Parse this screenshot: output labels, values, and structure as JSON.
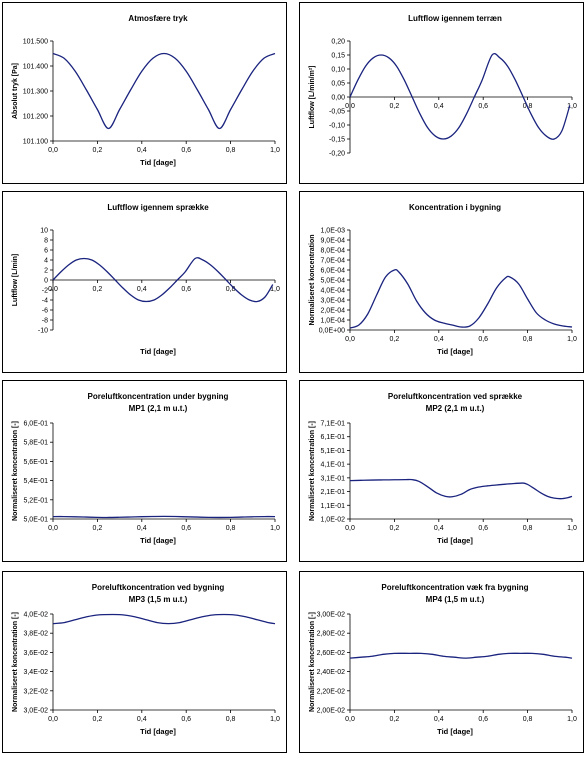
{
  "chart_data": [
    {
      "type": "line",
      "title": "Atmosfære tryk",
      "xlabel": "Tid [dage]",
      "ylabel": "Absolut tryk [Pa]",
      "xlim": [
        0,
        1
      ],
      "ylim": [
        101100,
        101500
      ],
      "x_ticks": [
        "0,0",
        "0,2",
        "0,4",
        "0,6",
        "0,8",
        "1,0"
      ],
      "y_ticks": [
        "101.100",
        "101.200",
        "101.300",
        "101.400",
        "101.500"
      ],
      "series": [
        {
          "color": "#1a237e",
          "x": [
            0,
            0.05,
            0.1,
            0.15,
            0.2,
            0.25,
            0.3,
            0.35,
            0.4,
            0.45,
            0.5,
            0.55,
            0.6,
            0.65,
            0.7,
            0.75,
            0.8,
            0.85,
            0.9,
            0.95,
            1.0
          ],
          "y": [
            101450,
            101431,
            101379,
            101305,
            101226,
            101150,
            101226,
            101305,
            101379,
            101431,
            101450,
            101431,
            101379,
            101305,
            101226,
            101150,
            101226,
            101305,
            101379,
            101431,
            101450
          ]
        }
      ]
    },
    {
      "type": "line",
      "title": "Luftflow igennem terræn",
      "xlabel": "",
      "ylabel": "Luftflow [L/min/m²]",
      "xlim": [
        0,
        1
      ],
      "ylim": [
        -0.2,
        0.2
      ],
      "x_axis_at_zero": true,
      "x_ticks": [
        "0,0",
        "0,2",
        "0,4",
        "0,6",
        "0,8",
        "1,0"
      ],
      "y_ticks": [
        "-0,20",
        "-0,15",
        "-0,10",
        "-0,05",
        "0,00",
        "0,05",
        "0,10",
        "0,15",
        "0,20"
      ],
      "series": [
        {
          "color": "#1a237e",
          "x": [
            0,
            0.035,
            0.07,
            0.105,
            0.14,
            0.175,
            0.21,
            0.245,
            0.28,
            0.315,
            0.35,
            0.385,
            0.42,
            0.455,
            0.49,
            0.525,
            0.56,
            0.595,
            0.64,
            0.675,
            0.71,
            0.745,
            0.78,
            0.815,
            0.85,
            0.885,
            0.92,
            0.955,
            0.99
          ],
          "y": [
            0.0,
            0.06,
            0.11,
            0.14,
            0.15,
            0.14,
            0.11,
            0.06,
            0.0,
            -0.06,
            -0.11,
            -0.14,
            -0.15,
            -0.14,
            -0.11,
            -0.06,
            0.0,
            0.06,
            0.15,
            0.14,
            0.11,
            0.06,
            0.0,
            -0.06,
            -0.11,
            -0.14,
            -0.15,
            -0.12,
            -0.03
          ]
        }
      ]
    },
    {
      "type": "line",
      "title": "Luftflow igennem sprække",
      "xlabel": "Tid [dage]",
      "ylabel": "Luftflow [L/min]",
      "xlim": [
        0,
        1
      ],
      "ylim": [
        -10,
        10
      ],
      "x_axis_at_zero": true,
      "x_ticks": [
        "0,0",
        "0,2",
        "0,4",
        "0,6",
        "0,8",
        "1,0"
      ],
      "y_ticks": [
        "-10",
        "-8",
        "-6",
        "-4",
        "-2",
        "0",
        "2",
        "4",
        "6",
        "8",
        "10"
      ],
      "series": [
        {
          "color": "#1a237e",
          "x": [
            0,
            0.035,
            0.07,
            0.105,
            0.14,
            0.175,
            0.21,
            0.245,
            0.28,
            0.315,
            0.35,
            0.385,
            0.42,
            0.455,
            0.49,
            0.525,
            0.56,
            0.595,
            0.64,
            0.675,
            0.71,
            0.745,
            0.78,
            0.815,
            0.85,
            0.885,
            0.92,
            0.955,
            0.99
          ],
          "y": [
            0.0,
            1.6,
            3.0,
            4.0,
            4.3,
            4.0,
            3.0,
            1.6,
            0.0,
            -1.6,
            -3.0,
            -4.0,
            -4.3,
            -4.0,
            -3.0,
            -1.6,
            0.0,
            1.6,
            4.3,
            4.0,
            3.0,
            1.6,
            0.0,
            -1.6,
            -3.0,
            -4.0,
            -4.3,
            -3.4,
            -0.9
          ]
        }
      ]
    },
    {
      "type": "line",
      "title": "Koncentration i bygning",
      "xlabel": "Tid [dage]",
      "ylabel": "Normaliseret koncentration",
      "xlim": [
        0,
        1
      ],
      "ylim": [
        0,
        0.001
      ],
      "x_ticks": [
        "0,0",
        "0,2",
        "0,4",
        "0,6",
        "0,8",
        "1,0"
      ],
      "y_ticks": [
        "0,0E+00",
        "1,0E-04",
        "2,0E-04",
        "3,0E-04",
        "4,0E-04",
        "5,0E-04",
        "6,0E-04",
        "7,0E-04",
        "8,0E-04",
        "9,0E-04",
        "1,0E-03"
      ],
      "series": [
        {
          "color": "#1a237e",
          "x": [
            0,
            0.04,
            0.08,
            0.12,
            0.16,
            0.2,
            0.22,
            0.26,
            0.3,
            0.34,
            0.38,
            0.42,
            0.46,
            0.5,
            0.54,
            0.58,
            0.62,
            0.66,
            0.7,
            0.72,
            0.76,
            0.8,
            0.84,
            0.88,
            0.92,
            0.96,
            1.0
          ],
          "y": [
            2e-05,
            5e-05,
            0.00016,
            0.00035,
            0.00053,
            0.0006,
            0.00058,
            0.00046,
            0.00029,
            0.00017,
            0.0001,
            7e-05,
            5e-05,
            3e-05,
            4e-05,
            0.00012,
            0.00026,
            0.00042,
            0.00052,
            0.00053,
            0.00046,
            0.00031,
            0.00017,
            0.0001,
            6e-05,
            4e-05,
            3e-05
          ]
        }
      ]
    },
    {
      "type": "line",
      "title": "Poreluftkoncentration under bygning",
      "subtitle": "MP1 (2,1 m u.t.)",
      "xlabel": "Tid [dage]",
      "ylabel": "Normaliseret koncentration [-]",
      "xlim": [
        0,
        1
      ],
      "ylim": [
        0.5,
        0.6
      ],
      "x_ticks": [
        "0,0",
        "0,2",
        "0,4",
        "0,6",
        "0,8",
        "1,0"
      ],
      "y_ticks": [
        "5,0E-01",
        "5,2E-01",
        "5,4E-01",
        "5,6E-01",
        "5,8E-01",
        "6,0E-01"
      ],
      "series": [
        {
          "color": "#1a237e",
          "x": [
            0,
            0.05,
            0.1,
            0.15,
            0.2,
            0.25,
            0.3,
            0.35,
            0.4,
            0.45,
            0.5,
            0.55,
            0.6,
            0.65,
            0.7,
            0.75,
            0.8,
            0.85,
            0.9,
            0.95,
            1.0
          ],
          "y": [
            0.5025,
            0.5025,
            0.5023,
            0.502,
            0.5017,
            0.5016,
            0.5018,
            0.5021,
            0.5024,
            0.5026,
            0.5027,
            0.5026,
            0.5023,
            0.502,
            0.5017,
            0.5016,
            0.5017,
            0.502,
            0.5023,
            0.5025,
            0.5025
          ]
        }
      ]
    },
    {
      "type": "line",
      "title": "Poreluftkoncentration ved sprække",
      "subtitle": "MP2 (2,1 m u.t.)",
      "xlabel": "Tid [dage]",
      "ylabel": "Normaliseret koncentration [-]",
      "xlim": [
        0,
        1
      ],
      "ylim": [
        0.01,
        0.71
      ],
      "x_ticks": [
        "0,0",
        "0,2",
        "0,4",
        "0,6",
        "0,8",
        "1,0"
      ],
      "y_ticks": [
        "1,0E-02",
        "1,1E-01",
        "2,1E-01",
        "3,1E-01",
        "4,1E-01",
        "5,1E-01",
        "6,1E-01",
        "7,1E-01"
      ],
      "series": [
        {
          "color": "#1a237e",
          "x": [
            0,
            0.05,
            0.1,
            0.15,
            0.2,
            0.25,
            0.28,
            0.31,
            0.35,
            0.39,
            0.43,
            0.46,
            0.5,
            0.54,
            0.58,
            0.62,
            0.66,
            0.7,
            0.74,
            0.78,
            0.8,
            0.83,
            0.86,
            0.89,
            0.92,
            0.95,
            0.98,
            1.0
          ],
          "y": [
            0.29,
            0.292,
            0.294,
            0.295,
            0.296,
            0.297,
            0.297,
            0.285,
            0.245,
            0.2,
            0.175,
            0.172,
            0.19,
            0.225,
            0.243,
            0.252,
            0.258,
            0.264,
            0.269,
            0.272,
            0.262,
            0.232,
            0.2,
            0.175,
            0.162,
            0.158,
            0.165,
            0.175
          ]
        }
      ]
    },
    {
      "type": "line",
      "title": "Poreluftkoncentration ved bygning",
      "subtitle": "MP3 (1,5 m u.t.)",
      "xlabel": "Tid [dage]",
      "ylabel": "Normaliseret koncentration [-]",
      "xlim": [
        0,
        1
      ],
      "ylim": [
        0.03,
        0.04
      ],
      "x_ticks": [
        "0,0",
        "0,2",
        "0,4",
        "0,6",
        "0,8",
        "1,0"
      ],
      "y_ticks": [
        "3,0E-02",
        "3,2E-02",
        "3,4E-02",
        "3,6E-02",
        "3,8E-02",
        "4,0E-02"
      ],
      "series": [
        {
          "color": "#1a237e",
          "x": [
            0,
            0.05,
            0.1,
            0.15,
            0.2,
            0.27,
            0.32,
            0.37,
            0.42,
            0.47,
            0.52,
            0.57,
            0.62,
            0.67,
            0.72,
            0.77,
            0.82,
            0.87,
            0.92,
            0.97,
            1.0
          ],
          "y": [
            0.039,
            0.0391,
            0.0394,
            0.0397,
            0.0399,
            0.03995,
            0.0399,
            0.0397,
            0.0394,
            0.0391,
            0.039,
            0.0391,
            0.0394,
            0.0397,
            0.0399,
            0.03995,
            0.0399,
            0.0397,
            0.0394,
            0.0391,
            0.039
          ]
        }
      ]
    },
    {
      "type": "line",
      "title": "Poreluftkoncentration væk fra bygning",
      "subtitle": "MP4 (1,5 m u.t.)",
      "xlabel": "Tid [dage]",
      "ylabel": "Normaliseret koncentration [-]",
      "xlim": [
        0,
        1
      ],
      "ylim": [
        0.02,
        0.03
      ],
      "x_ticks": [
        "0,0",
        "0,2",
        "0,4",
        "0,6",
        "0,8",
        "1,0"
      ],
      "y_ticks": [
        "2,00E-02",
        "2,20E-02",
        "2,40E-02",
        "2,60E-02",
        "2,80E-02",
        "3,00E-02"
      ],
      "series": [
        {
          "color": "#1a237e",
          "x": [
            0,
            0.05,
            0.1,
            0.15,
            0.2,
            0.27,
            0.32,
            0.37,
            0.42,
            0.47,
            0.52,
            0.57,
            0.62,
            0.67,
            0.72,
            0.77,
            0.82,
            0.87,
            0.92,
            0.97,
            1.0
          ],
          "y": [
            0.0254,
            0.0255,
            0.0256,
            0.0258,
            0.0259,
            0.0259,
            0.0259,
            0.0258,
            0.0256,
            0.0255,
            0.0254,
            0.0255,
            0.0256,
            0.0258,
            0.0259,
            0.0259,
            0.0259,
            0.0258,
            0.0256,
            0.0255,
            0.0254
          ]
        }
      ]
    }
  ]
}
